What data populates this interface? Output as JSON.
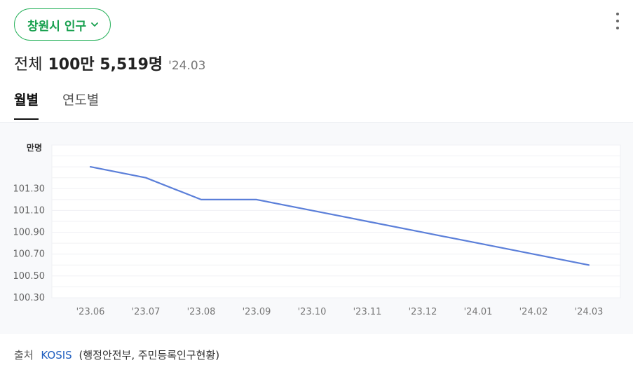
{
  "header": {
    "region_label": "창원시 인구",
    "total_label": "전체",
    "total_value": "100만 5,519명",
    "total_date": "'24.03"
  },
  "tabs": [
    {
      "label": "월별",
      "active": true
    },
    {
      "label": "연도별",
      "active": false
    }
  ],
  "source": {
    "label": "출처",
    "link": "KOSIS",
    "detail": "(행정안전부, 주민등록인구현황)"
  },
  "colors": {
    "accent_green": "#2db35f",
    "line": "#5b7fd9"
  },
  "chart_data": {
    "type": "line",
    "unit_label": "만명",
    "categories": [
      "'23.06",
      "'23.07",
      "'23.08",
      "'23.09",
      "'23.10",
      "'23.11",
      "'23.12",
      "'24.01",
      "'24.02",
      "'24.03"
    ],
    "y_ticks": [
      "101.30",
      "101.10",
      "100.90",
      "100.70",
      "100.50",
      "100.30"
    ],
    "series": [
      {
        "values": [
          101.5,
          101.4,
          101.2,
          101.2,
          101.1,
          101.0,
          100.9,
          100.8,
          100.7,
          100.6
        ]
      }
    ],
    "ylim": [
      100.3,
      101.7
    ],
    "grid": true,
    "legend": "none"
  }
}
